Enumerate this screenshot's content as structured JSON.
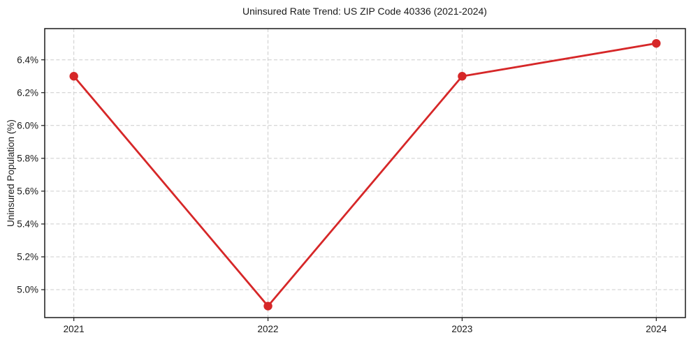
{
  "chart_data": {
    "type": "line",
    "title": "Uninsured Rate Trend: US ZIP Code 40336 (2021-2024)",
    "xlabel": "",
    "ylabel": "Uninsured Population (%)",
    "x": [
      2021,
      2022,
      2023,
      2024
    ],
    "series": [
      {
        "name": "Uninsured rate",
        "values": [
          6.3,
          4.9,
          6.3,
          6.5
        ]
      }
    ],
    "xticks": {
      "values": [
        2021,
        2022,
        2023,
        2024
      ],
      "labels": [
        "2021",
        "2022",
        "2023",
        "2024"
      ]
    },
    "yticks": {
      "values": [
        5.0,
        5.2,
        5.4,
        5.6,
        5.8,
        6.0,
        6.2,
        6.4
      ],
      "labels": [
        "5.0%",
        "5.2%",
        "5.4%",
        "5.6%",
        "5.8%",
        "6.0%",
        "6.2%",
        "6.4%"
      ]
    },
    "xlim": [
      2020.85,
      2024.15
    ],
    "ylim": [
      4.83,
      6.59
    ],
    "grid": true,
    "grid_style": "dashed",
    "legend": "none",
    "colors": {
      "line": "#d62728",
      "marker": "#d62728",
      "grid": "#cccccc",
      "axis": "#1a1a1a",
      "text": "#1a1a1a",
      "background": "#ffffff"
    }
  }
}
